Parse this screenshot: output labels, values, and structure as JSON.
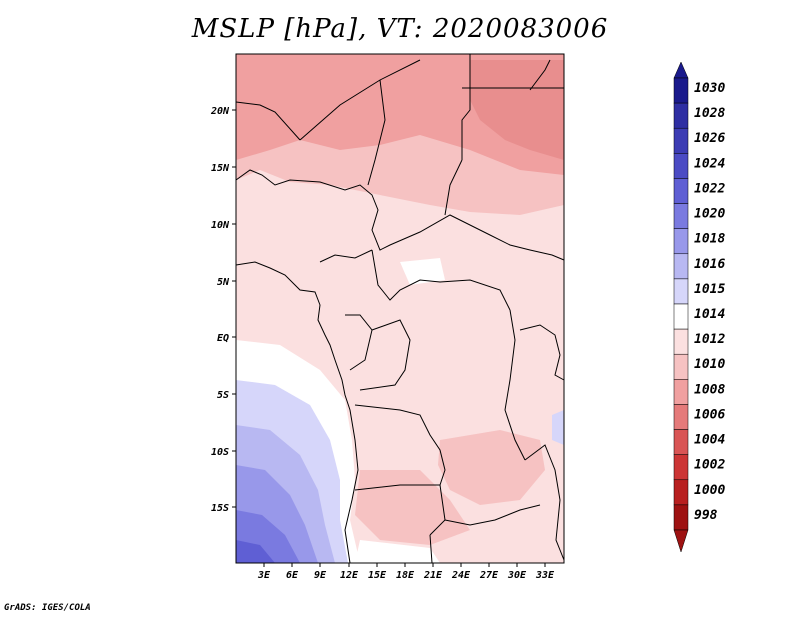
{
  "title": "MSLP [hPa], VT: 2020083006",
  "footer": "GrADS: IGES/COLA",
  "map": {
    "lon_labels": [
      "3E",
      "6E",
      "9E",
      "12E",
      "15E",
      "18E",
      "21E",
      "24E",
      "27E",
      "30E",
      "33E"
    ],
    "lat_labels": [
      "20N",
      "15N",
      "10N",
      "5N",
      "EQ",
      "5S",
      "10S",
      "15S"
    ]
  },
  "colorbar": {
    "levels": [
      "1030",
      "1028",
      "1026",
      "1024",
      "1022",
      "1020",
      "1018",
      "1016",
      "1015",
      "1014",
      "1012",
      "1010",
      "1008",
      "1006",
      "1004",
      "1002",
      "1000",
      "998"
    ],
    "colors": [
      "#1a1a8c",
      "#2e2ea3",
      "#3c3cb4",
      "#4b4bc4",
      "#5f5fd4",
      "#7a7ae0",
      "#9898ea",
      "#b8b8f2",
      "#d6d6fa",
      "#ffffff",
      "#fbe0e0",
      "#f6c2c2",
      "#f0a0a0",
      "#e57a7a",
      "#d95555",
      "#cc3535",
      "#b82020",
      "#9e1212"
    ],
    "top_color": "#1a1a8c",
    "bottom_color": "#9e1212"
  }
}
